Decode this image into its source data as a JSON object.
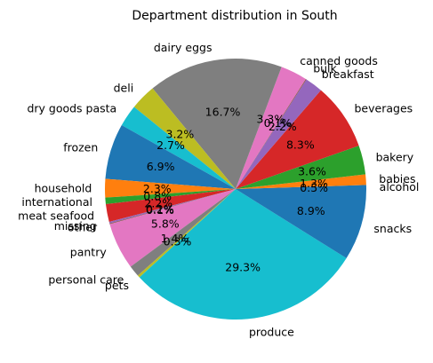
{
  "chart_data": {
    "type": "pie",
    "title": "Department distribution in South",
    "start_angle_deg": 0,
    "direction": "counterclockwise",
    "slices": [
      {
        "label": "alcohol",
        "value": 0.5,
        "pct_label": "0.5%",
        "color": "#1f77b4"
      },
      {
        "label": "babies",
        "value": 1.3,
        "pct_label": "1.3%",
        "color": "#ff7f0e"
      },
      {
        "label": "bakery",
        "value": 3.6,
        "pct_label": "3.6%",
        "color": "#2ca02c"
      },
      {
        "label": "beverages",
        "value": 8.3,
        "pct_label": "8.3%",
        "color": "#d62728"
      },
      {
        "label": "breakfast",
        "value": 2.2,
        "pct_label": "2.2%",
        "color": "#9467bd"
      },
      {
        "label": "bulk",
        "value": 0.1,
        "pct_label": "0.1%",
        "color": "#8c564b"
      },
      {
        "label": "canned goods",
        "value": 3.3,
        "pct_label": "3.3%",
        "color": "#e377c2"
      },
      {
        "label": "dairy eggs",
        "value": 16.7,
        "pct_label": "16.7%",
        "color": "#7f7f7f"
      },
      {
        "label": "deli",
        "value": 3.2,
        "pct_label": "3.2%",
        "color": "#bcbd22"
      },
      {
        "label": "dry goods pasta",
        "value": 2.7,
        "pct_label": "2.7%",
        "color": "#17becf"
      },
      {
        "label": "frozen",
        "value": 6.9,
        "pct_label": "6.9%",
        "color": "#1f77b4"
      },
      {
        "label": "household",
        "value": 2.3,
        "pct_label": "2.3%",
        "color": "#ff7f0e"
      },
      {
        "label": "international",
        "value": 0.8,
        "pct_label": "0.8%",
        "color": "#2ca02c"
      },
      {
        "label": "meat seafood",
        "value": 2.2,
        "pct_label": "2.2%",
        "color": "#d62728"
      },
      {
        "label": "missing",
        "value": 0.2,
        "pct_label": "0.2%",
        "color": "#9467bd"
      },
      {
        "label": "other",
        "value": 0.1,
        "pct_label": "0.1%",
        "color": "#8c564b"
      },
      {
        "label": "pantry",
        "value": 5.8,
        "pct_label": "5.8%",
        "color": "#e377c2"
      },
      {
        "label": "personal care",
        "value": 1.4,
        "pct_label": "1.4%",
        "color": "#7f7f7f"
      },
      {
        "label": "pets",
        "value": 0.3,
        "pct_label": "0.3%",
        "color": "#bcbd22"
      },
      {
        "label": "produce",
        "value": 29.3,
        "pct_label": "29.3%",
        "color": "#17becf"
      },
      {
        "label": "snacks",
        "value": 8.9,
        "pct_label": "8.9%",
        "color": "#1f77b4"
      }
    ]
  }
}
